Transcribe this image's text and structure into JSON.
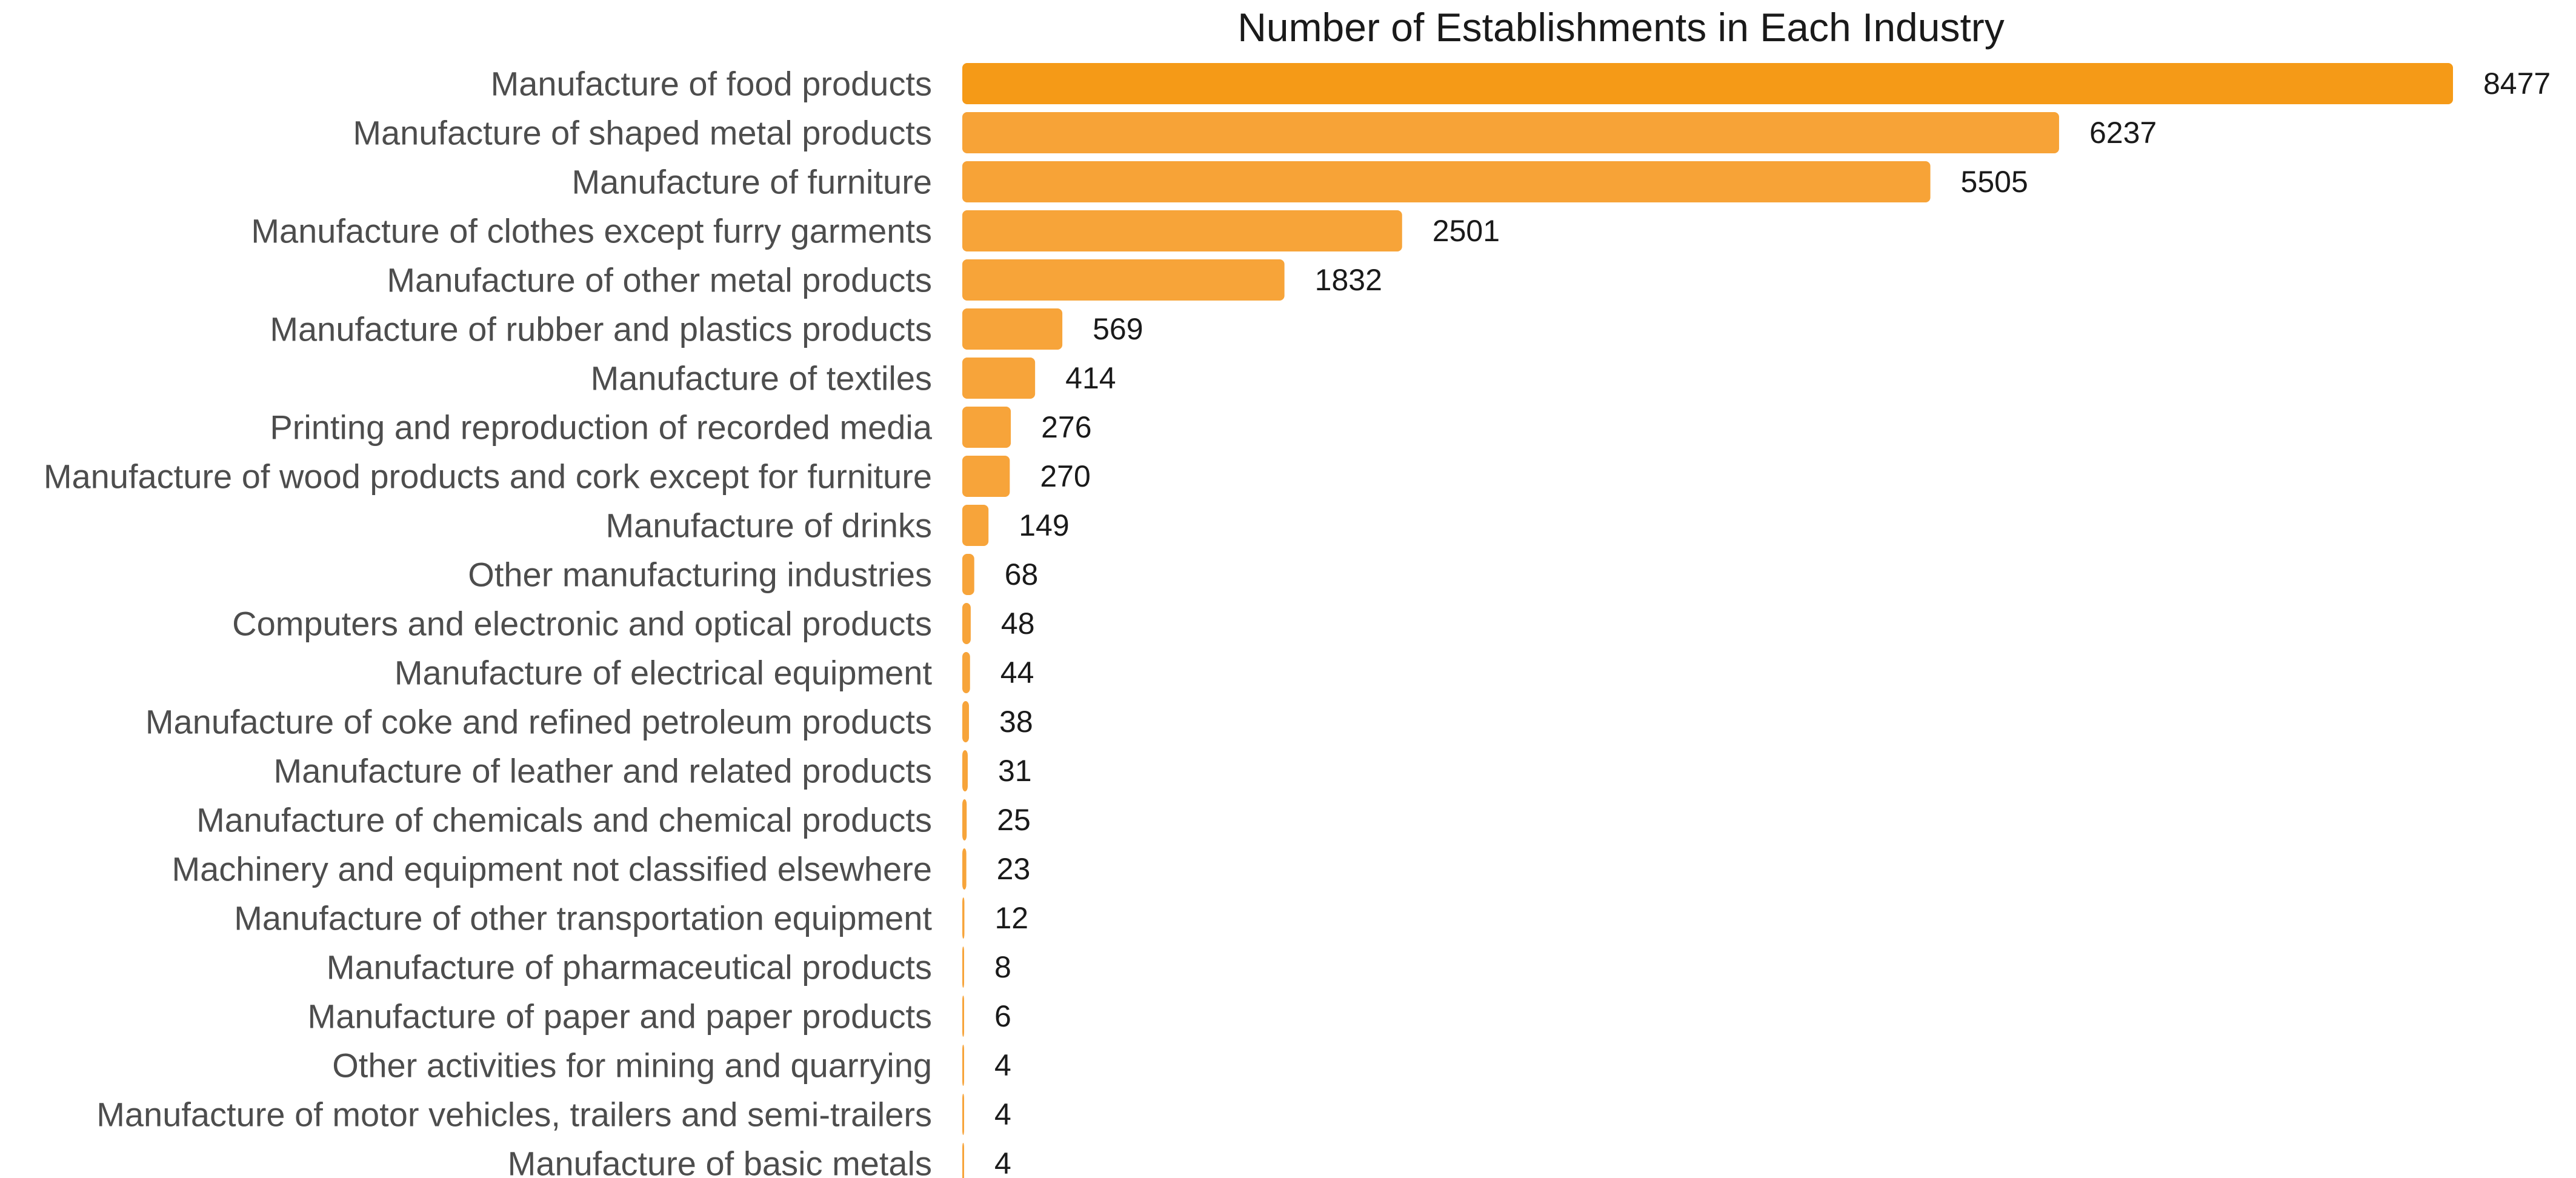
{
  "chart_data": {
    "type": "bar",
    "orientation": "horizontal",
    "title": "Number of Establishments in Each Industry",
    "xlabel": "",
    "ylabel": "",
    "xlim": [
      0,
      8477
    ],
    "grid": false,
    "legend": "none",
    "bar_color": "#f7a43a",
    "top_bar_color": "#f59a17",
    "categories": [
      "Manufacture of food products",
      "Manufacture of shaped metal products",
      "Manufacture of furniture",
      "Manufacture of clothes except furry garments",
      "Manufacture of other metal products",
      "Manufacture of rubber and plastics products",
      "Manufacture of textiles",
      "Printing and reproduction of recorded media",
      "Manufacture of wood products and cork except for furniture",
      "Manufacture of drinks",
      "Other manufacturing industries",
      "Computers and electronic and optical products",
      "Manufacture of electrical equipment",
      "Manufacture of coke and refined petroleum products",
      "Manufacture of leather and related products",
      "Manufacture of chemicals and chemical products",
      "Machinery and equipment not classified elsewhere",
      "Manufacture of other transportation equipment",
      "Manufacture of pharmaceutical products",
      "Manufacture of paper and paper products",
      "Other activities for mining and quarrying",
      "Manufacture of motor vehicles, trailers and semi-trailers",
      "Manufacture of basic metals"
    ],
    "values": [
      8477,
      6237,
      5505,
      2501,
      1832,
      569,
      414,
      276,
      270,
      149,
      68,
      48,
      44,
      38,
      31,
      25,
      23,
      12,
      8,
      6,
      4,
      4,
      4
    ],
    "value_labels": [
      "8477",
      "6237",
      "5505",
      "2501",
      "1832",
      "569",
      "414",
      "276",
      "270",
      "149",
      "68",
      "48",
      "44",
      "38",
      "31",
      "25",
      "23",
      "12",
      "8",
      "6",
      "4",
      "4",
      "4"
    ]
  }
}
